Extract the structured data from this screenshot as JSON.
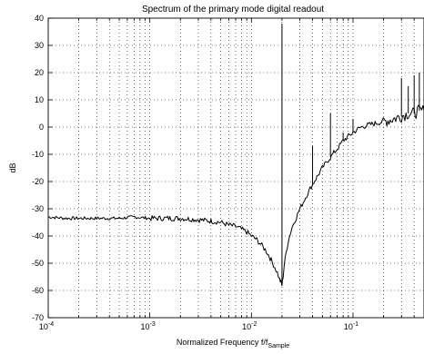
{
  "chart_data": {
    "type": "line",
    "title": "Spectrum of the primary mode digital readout",
    "xlabel": "Normalized Frequency f/f",
    "xlabel_sub": "Sample",
    "ylabel": "dB",
    "xscale": "log",
    "xlim": [
      0.0001,
      0.5
    ],
    "ylim": [
      -70,
      40
    ],
    "grid": true,
    "x_ticks": [
      {
        "value": 0.0001,
        "base": "10",
        "exp": "-4"
      },
      {
        "value": 0.001,
        "base": "10",
        "exp": "-3"
      },
      {
        "value": 0.01,
        "base": "10",
        "exp": "-2"
      },
      {
        "value": 0.1,
        "base": "10",
        "exp": "-1"
      }
    ],
    "y_ticks": [
      -70,
      -60,
      -50,
      -40,
      -30,
      -20,
      -10,
      0,
      10,
      20,
      30,
      40
    ],
    "series": [
      {
        "color": "#000000",
        "x": [
          0.0001,
          0.00015,
          0.0002,
          0.0003,
          0.0005,
          0.0007,
          0.001,
          0.0015,
          0.002,
          0.003,
          0.004,
          0.005,
          0.006,
          0.007,
          0.008,
          0.009,
          0.01,
          0.011,
          0.012,
          0.013,
          0.014,
          0.015,
          0.016,
          0.017,
          0.018,
          0.019,
          0.0195,
          0.02,
          0.0205,
          0.021,
          0.022,
          0.023,
          0.025,
          0.03,
          0.035,
          0.04,
          0.05,
          0.06,
          0.07,
          0.08,
          0.1,
          0.12,
          0.15,
          0.2,
          0.25,
          0.3,
          0.35,
          0.4,
          0.45,
          0.5
        ],
        "y": [
          -33,
          -33.5,
          -33.5,
          -33.5,
          -33.5,
          -33,
          -33.5,
          -33.5,
          -33.5,
          -34,
          -34.5,
          -35,
          -36,
          -36.5,
          -37.5,
          -38.5,
          -40,
          -41,
          -42.5,
          -44,
          -45.5,
          -47.5,
          -49.5,
          -51.5,
          -53.5,
          -56,
          -57,
          -58,
          -55,
          -51,
          -46,
          -42,
          -37,
          -30,
          -25,
          -21,
          -15,
          -11,
          -8,
          -5,
          -2,
          0,
          1,
          2,
          3,
          4,
          5,
          5,
          6,
          6
        ]
      }
    ],
    "spikes": [
      {
        "x": 0.02,
        "y": 38
      },
      {
        "x": 0.04,
        "y": -7
      },
      {
        "x": 0.06,
        "y": 5
      },
      {
        "x": 0.08,
        "y": -2
      },
      {
        "x": 0.1,
        "y": 3
      },
      {
        "x": 0.3,
        "y": 18
      },
      {
        "x": 0.35,
        "y": 15
      },
      {
        "x": 0.4,
        "y": 19
      },
      {
        "x": 0.45,
        "y": 20
      }
    ]
  }
}
